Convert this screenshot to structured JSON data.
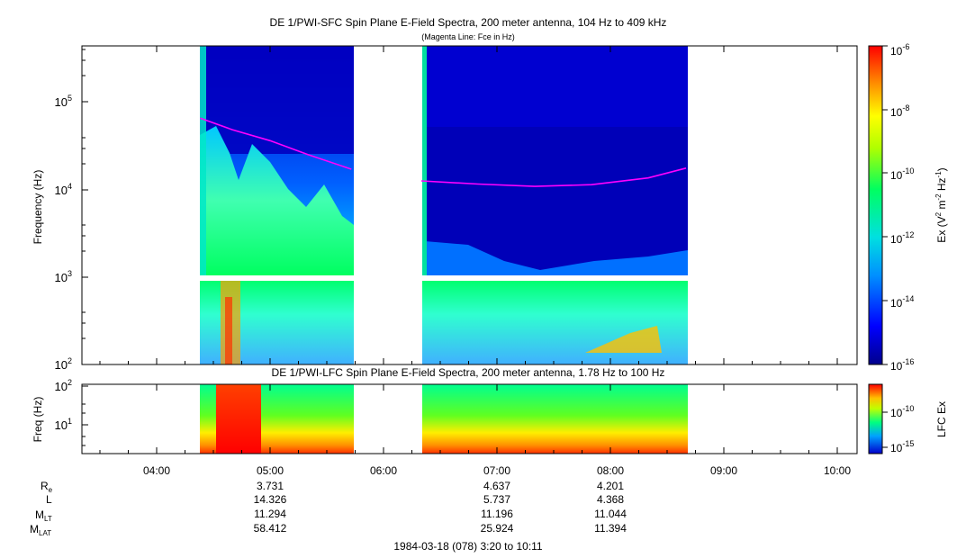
{
  "chart_data": [
    {
      "type": "heatmap",
      "title": "DE 1/PWI-SFC  Spin Plane E-Field Spectra, 200 meter antenna, 104 Hz to 409 kHz",
      "subtitle": "(Magenta Line: Fce in Hz)",
      "ylabel": "Frequency (Hz)",
      "yscale": "log",
      "ylim": [
        100,
        409000
      ],
      "ytick_labels": [
        "10^2",
        "10^3",
        "10^4",
        "10^5"
      ],
      "colorbar_label": "Ex (V^2 m^-2 Hz^-1)",
      "colorbar_range": [
        1e-16,
        1e-06
      ],
      "colorbar_tick_labels": [
        "10^-6",
        "10^-8",
        "10^-10",
        "10^-12",
        "10^-14",
        "10^-16"
      ],
      "data_intervals": [
        [
          "04:23",
          "05:44"
        ],
        [
          "06:20",
          "08:42"
        ]
      ],
      "fce_line": {
        "time": [
          "04:23",
          "04:40",
          "05:00",
          "05:20",
          "05:43",
          "06:20",
          "06:50",
          "07:20",
          "07:50",
          "08:20",
          "08:40"
        ],
        "freq_hz": [
          65000,
          48000,
          36000,
          25000,
          17000,
          12500,
          11500,
          10800,
          11300,
          13500,
          17500
        ]
      }
    },
    {
      "type": "heatmap",
      "title": "DE 1/PWI-LFC  Spin Plane E-Field Spectra, 200 meter antenna, 1.78 Hz to 100 Hz",
      "ylabel": "Freq (Hz)",
      "yscale": "log",
      "ylim": [
        1.78,
        100
      ],
      "ytick_labels": [
        "10^1",
        "10^2"
      ],
      "colorbar_label": "LFC Ex",
      "colorbar_tick_labels": [
        "10^-10",
        "10^-15"
      ],
      "data_intervals": [
        [
          "04:23",
          "05:44"
        ],
        [
          "06:20",
          "08:42"
        ]
      ]
    }
  ],
  "xaxis": {
    "tick_labels": [
      "04:00",
      "05:00",
      "06:00",
      "07:00",
      "08:00",
      "09:00",
      "10:00"
    ]
  },
  "ephemeris": {
    "rows": [
      {
        "label": "R",
        "sub": "e",
        "values": [
          "3.731",
          "4.637",
          "4.201"
        ]
      },
      {
        "label": "L",
        "sub": "",
        "values": [
          "14.326",
          "5.737",
          "4.368"
        ]
      },
      {
        "label": "M",
        "sub": "LT",
        "values": [
          "11.294",
          "11.196",
          "11.044"
        ]
      },
      {
        "label": "M",
        "sub": "LAT",
        "values": [
          "58.412",
          "25.924",
          "11.394"
        ]
      }
    ],
    "column_times": [
      "05:00",
      "07:00",
      "08:00"
    ]
  },
  "date_line": "1984-03-18 (078) 3:20 to 10:11",
  "colors": {
    "background": "#00008b",
    "fce_line": "#ff00ff"
  }
}
